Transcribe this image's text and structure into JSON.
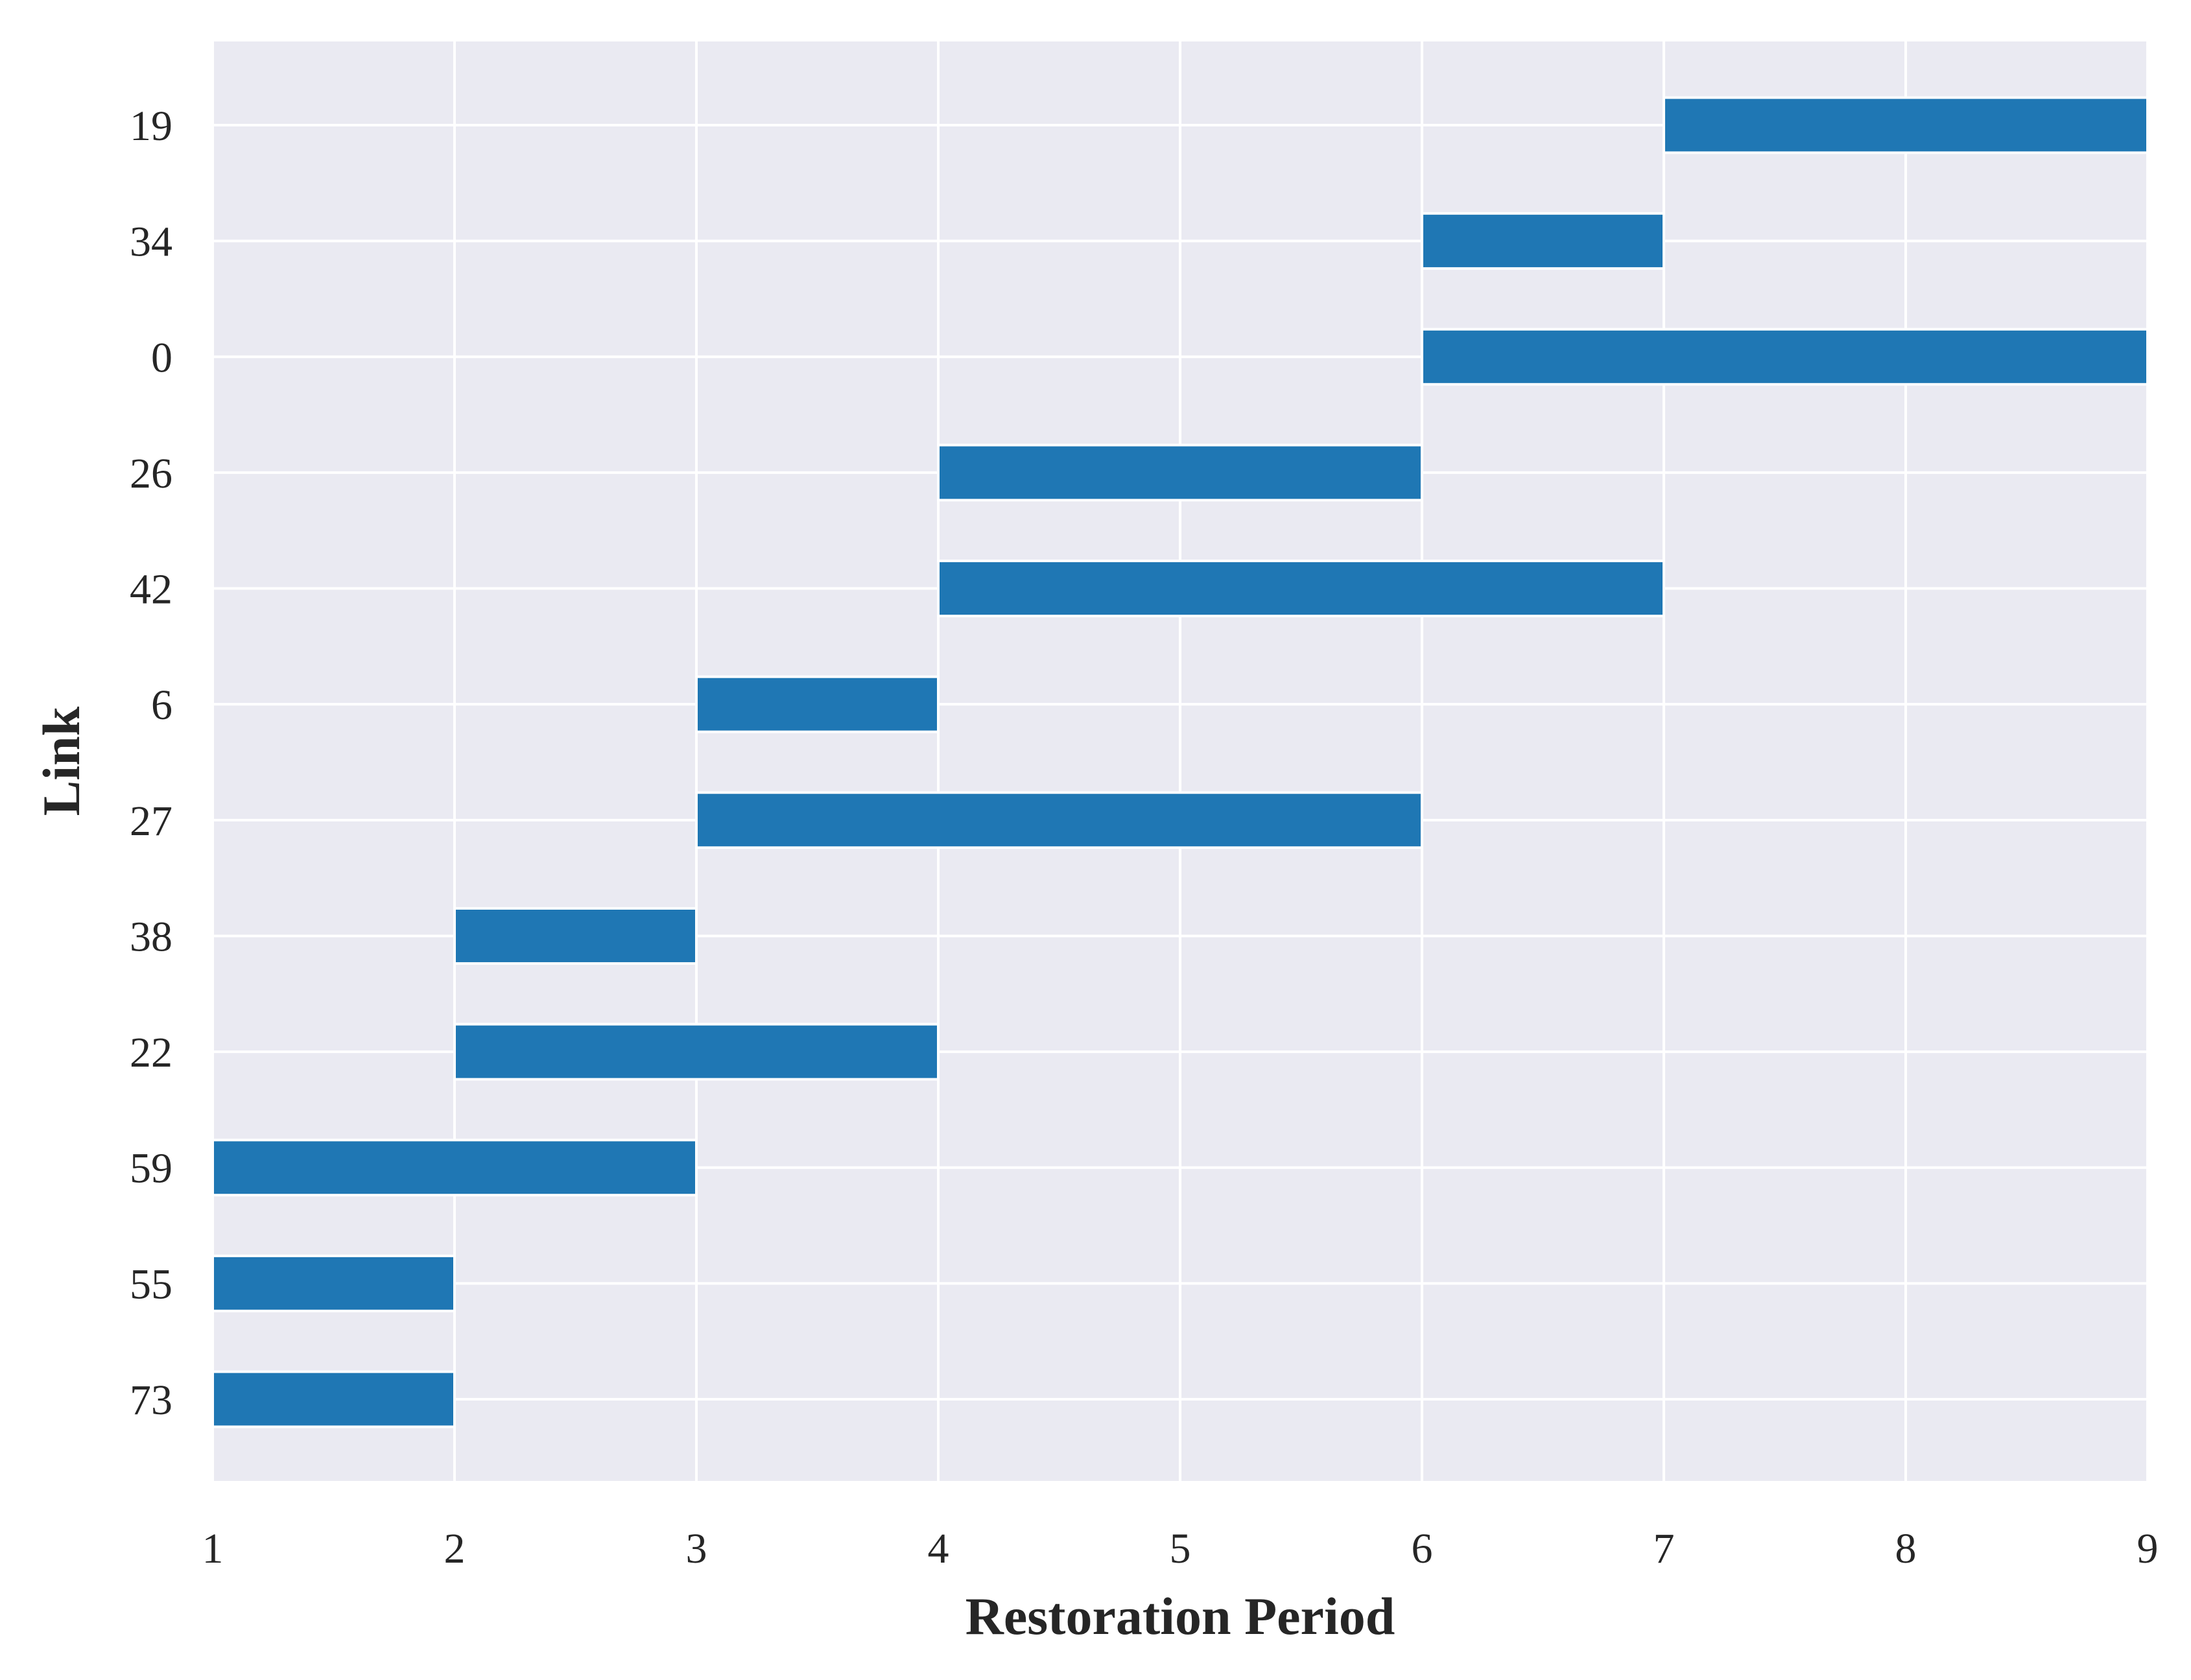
{
  "chart_data": {
    "type": "bar",
    "orientation": "horizontal-gantt",
    "xlabel": "Restoration Period",
    "ylabel": "Link",
    "xlim": [
      1,
      9
    ],
    "xticks": [
      1,
      2,
      3,
      4,
      5,
      6,
      7,
      8,
      9
    ],
    "grid": true,
    "legend": "none",
    "categories": [
      "73",
      "55",
      "59",
      "22",
      "38",
      "27",
      "6",
      "42",
      "26",
      "0",
      "34",
      "19"
    ],
    "tasks": [
      {
        "link": "73",
        "start": 1,
        "end": 2
      },
      {
        "link": "55",
        "start": 1,
        "end": 2
      },
      {
        "link": "59",
        "start": 1,
        "end": 3
      },
      {
        "link": "22",
        "start": 2,
        "end": 4
      },
      {
        "link": "38",
        "start": 2,
        "end": 3
      },
      {
        "link": "27",
        "start": 3,
        "end": 6
      },
      {
        "link": "6",
        "start": 3,
        "end": 4
      },
      {
        "link": "42",
        "start": 4,
        "end": 7
      },
      {
        "link": "26",
        "start": 4,
        "end": 6
      },
      {
        "link": "0",
        "start": 6,
        "end": 9
      },
      {
        "link": "34",
        "start": 6,
        "end": 7
      },
      {
        "link": "19",
        "start": 7,
        "end": 9
      }
    ],
    "colors": {
      "bar": "#1f77b4",
      "background": "#eaeaf2",
      "grid": "#ffffff",
      "text": "#262626"
    }
  }
}
